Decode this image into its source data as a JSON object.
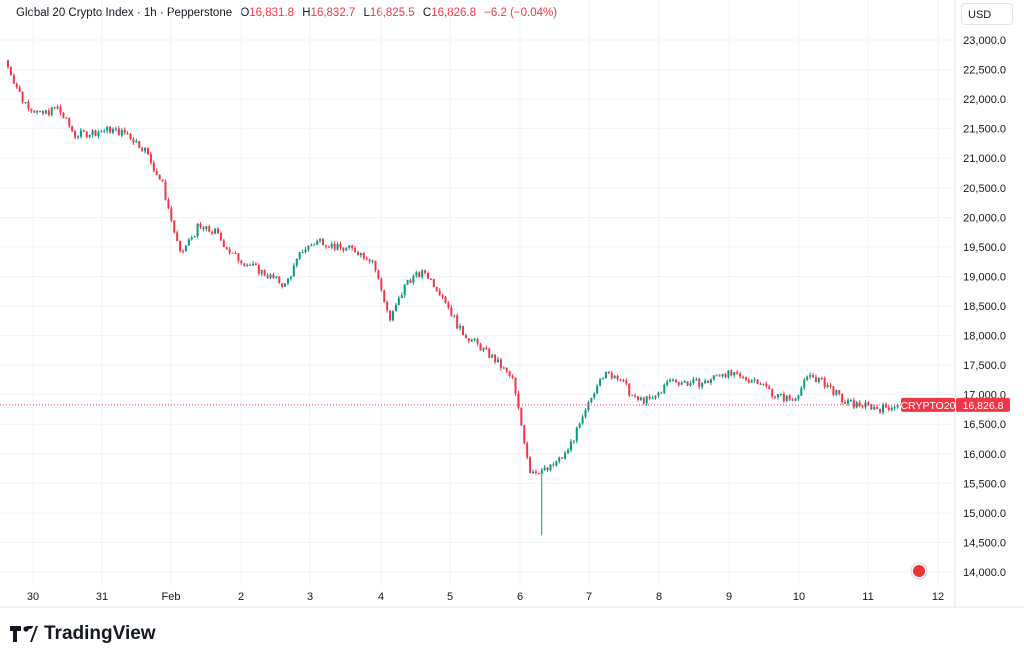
{
  "header": {
    "symbol": "Global 20 Crypto Index",
    "interval": "1h",
    "source": "Pepperstone",
    "open_label": "O",
    "open": "16,831.8",
    "high_label": "H",
    "high": "16,832.7",
    "low_label": "L",
    "low": "16,825.5",
    "close_label": "C",
    "close": "16,826.8",
    "change": "−6.2 (−0.04%)",
    "currency": "USD"
  },
  "price_label": {
    "ticker": "CRYPTO20",
    "price": "16,826.8"
  },
  "brand": "TradingView",
  "chart_data": {
    "type": "candlestick",
    "title": "Global 20 Crypto Index · 1h · Pepperstone",
    "ylim": [
      14000,
      23000
    ],
    "y_ticks": [
      "23,000.0",
      "22,500.0",
      "22,000.0",
      "21,500.0",
      "21,000.0",
      "20,500.0",
      "20,000.0",
      "19,500.0",
      "19,000.0",
      "18,500.0",
      "18,000.0",
      "17,500.0",
      "17,000.0",
      "16,500.0",
      "16,000.0",
      "15,500.0",
      "15,000.0",
      "14,500.0",
      "14,000.0"
    ],
    "x_ticks": [
      "30",
      "31",
      "Feb",
      "2",
      "3",
      "4",
      "5",
      "6",
      "7",
      "8",
      "9",
      "10",
      "11",
      "12"
    ],
    "last_price": 16826.8,
    "up_color": "#089981",
    "down_color": "#F23645",
    "grid": true,
    "approx_close_6h": [
      22660,
      21985,
      21730,
      21850,
      21390,
      21440,
      21480,
      21410,
      21140,
      20550,
      19360,
      19820,
      19750,
      19360,
      19190,
      19020,
      18850,
      19450,
      19620,
      19480,
      19450,
      19280,
      18260,
      18940,
      19070,
      18690,
      18090,
      17840,
      17590,
      17250,
      15720,
      15720,
      15980,
      16570,
      17330,
      17330,
      16910,
      16910,
      17250,
      17200,
      17200,
      17380,
      17280,
      17250,
      16990,
      16910,
      17330,
      17160,
      16860,
      16820,
      16770,
      16826.8
    ],
    "session_low": 14620
  }
}
